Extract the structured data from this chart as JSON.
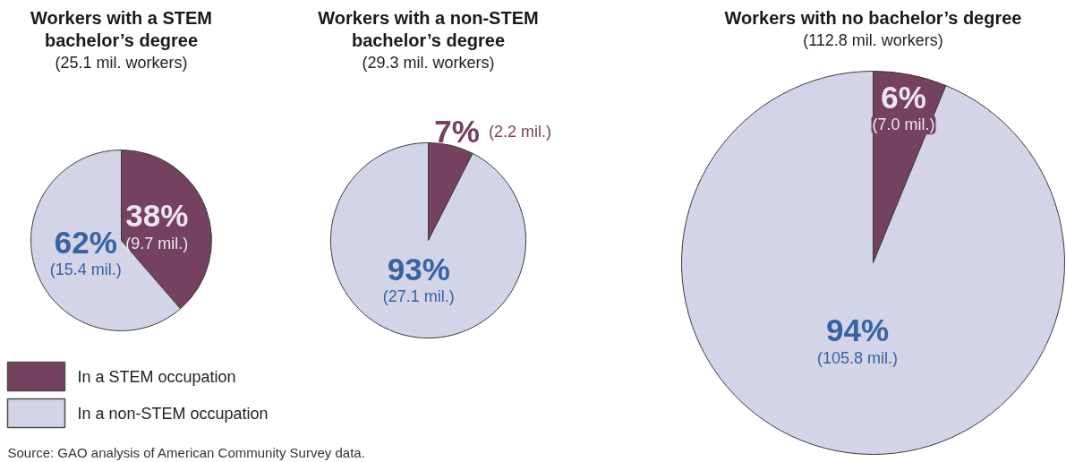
{
  "chart_data": [
    {
      "type": "pie",
      "title": "Workers with a STEM bachelor’s degree",
      "subtitle": "(25.1 mil. workers)",
      "categories": [
        "In a STEM occupation",
        "In a non-STEM occupation"
      ],
      "values": [
        9.7,
        15.4
      ],
      "colors": [
        "#74415e",
        "#d3d4e7"
      ],
      "value_labels": [
        "38%\n(9.7 mil.)",
        "62%\n(15.4 mil.)"
      ],
      "legend": "bottom",
      "annotations": [
        "Source: GAO analysis of American Community Survey data."
      ]
    },
    {
      "type": "pie",
      "title": "Workers with a non-STEM bachelor’s degree",
      "subtitle": "(29.3 mil. workers)",
      "categories": [
        null,
        null
      ],
      "values": [
        2.2,
        27.1
      ],
      "colors": [
        "#74415e",
        "#d3d4e7"
      ],
      "value_labels": [
        "7%\n(2.2 mil.)",
        "93%\n(27.1 mil.)"
      ]
    },
    {
      "type": "pie",
      "title": "Workers with no bachelor’s degree",
      "subtitle": "(112.8 mil. workers)",
      "categories": [
        null,
        null
      ],
      "values": [
        7.0,
        105.8
      ],
      "colors": [
        "#74415e",
        "#d3d4e7"
      ],
      "value_labels": [
        "6%\n(7.0 mil.)",
        "94%\n(105.8 mil.)"
      ]
    }
  ]
}
